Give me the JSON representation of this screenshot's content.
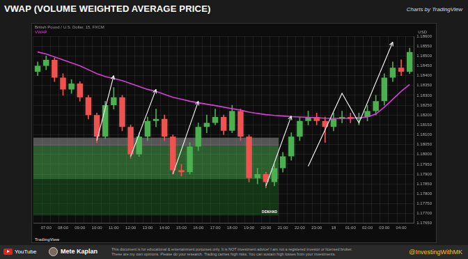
{
  "page": {
    "title": "VWAP (VOLUME WEIGHTED AVERAGE PRICE)",
    "credit": "Charts by TradingView",
    "watermark": "TradingView",
    "footer": {
      "youtube": "YouTube",
      "author": "Mete Kaplan",
      "disclaimer": [
        "This document is for educational & entertainment purposes only. It is NOT investment advice! I am not a registered investor or licensed broker.",
        "These are my own opinions. Please do your research. Trading carries high risks. You can sustain high losses from your investments."
      ],
      "handle": "@InvestingWithMK"
    }
  },
  "chart_data": {
    "type": "candlestick",
    "y_label": "USD",
    "categories": [
      null,
      "07:00",
      null,
      "08:00",
      null,
      "09:00",
      null,
      "10:00",
      null,
      "11:00",
      null,
      "12:00",
      null,
      "13:00",
      null,
      "14:00",
      null,
      "15:00",
      null,
      "16:00",
      null,
      "17:00",
      null,
      "18:00",
      null,
      "19:00",
      null,
      "20:00",
      null,
      "21:00",
      null,
      "22:00",
      null,
      "23:00",
      null,
      "18",
      null,
      "01:00",
      null,
      "02:00",
      null,
      "03:00",
      null,
      "04:00",
      null
    ],
    "series": [
      {
        "name": "British Pound / U.S. Dollar, 15, FXCM",
        "type": "candlestick",
        "values": [
          [
            1.1842,
            1.1847,
            1.184,
            1.1845
          ],
          [
            1.1845,
            1.185,
            1.1843,
            1.1848
          ],
          [
            1.1848,
            1.1849,
            1.1837,
            1.1839
          ],
          [
            1.1839,
            1.1841,
            1.183,
            1.1833
          ],
          [
            1.1833,
            1.1838,
            1.1831,
            1.1836
          ],
          [
            1.1836,
            1.1837,
            1.1827,
            1.1829
          ],
          [
            1.1829,
            1.183,
            1.1818,
            1.182
          ],
          [
            1.182,
            1.1821,
            1.1806,
            1.1809
          ],
          [
            1.1809,
            1.1827,
            1.1808,
            1.1825
          ],
          [
            1.1825,
            1.1834,
            1.1823,
            1.1829
          ],
          [
            1.1829,
            1.183,
            1.1812,
            1.1814
          ],
          [
            1.1814,
            1.1815,
            1.1798,
            1.18
          ],
          [
            1.18,
            1.1811,
            1.1799,
            1.1809
          ],
          [
            1.1809,
            1.1819,
            1.1807,
            1.1817
          ],
          [
            1.1817,
            1.1823,
            1.1814,
            1.1818
          ],
          [
            1.1818,
            1.182,
            1.1807,
            1.1809
          ],
          [
            1.1809,
            1.181,
            1.179,
            1.1792
          ],
          [
            1.1792,
            1.1795,
            1.1789,
            1.1791
          ],
          [
            1.1791,
            1.1806,
            1.179,
            1.1804
          ],
          [
            1.1804,
            1.1816,
            1.1802,
            1.1814
          ],
          [
            1.1814,
            1.182,
            1.1811,
            1.1816
          ],
          [
            1.1816,
            1.1823,
            1.1815,
            1.1819
          ],
          [
            1.1819,
            1.182,
            1.181,
            1.1812
          ],
          [
            1.1812,
            1.1825,
            1.1811,
            1.1822
          ],
          [
            1.1822,
            1.1823,
            1.1807,
            1.1809
          ],
          [
            1.1809,
            1.181,
            1.1786,
            1.1788
          ],
          [
            1.1788,
            1.1793,
            1.1785,
            1.179
          ],
          [
            1.179,
            1.1791,
            1.1783,
            1.1786
          ],
          [
            1.1786,
            1.1795,
            1.1784,
            1.1793
          ],
          [
            1.1793,
            1.1801,
            1.1791,
            1.1799
          ],
          [
            1.1799,
            1.1811,
            1.1797,
            1.1809
          ],
          [
            1.1809,
            1.1819,
            1.1807,
            1.1817
          ],
          [
            1.1817,
            1.1822,
            1.1815,
            1.1819
          ],
          [
            1.1819,
            1.1821,
            1.1815,
            1.1817
          ],
          [
            1.1817,
            1.1819,
            1.1806,
            1.1814
          ],
          [
            1.1814,
            1.1821,
            1.1812,
            1.1818
          ],
          [
            1.1818,
            1.1822,
            1.1816,
            1.1819
          ],
          [
            1.1819,
            1.1821,
            1.1816,
            1.1818
          ],
          [
            1.1818,
            1.1821,
            1.1815,
            1.1819
          ],
          [
            1.1819,
            1.1825,
            1.1817,
            1.1822
          ],
          [
            1.1822,
            1.183,
            1.182,
            1.1827
          ],
          [
            1.1827,
            1.1841,
            1.1825,
            1.1839
          ],
          [
            1.1839,
            1.1847,
            1.1837,
            1.1844
          ],
          [
            1.1844,
            1.1848,
            1.184,
            1.1842
          ],
          [
            1.1842,
            1.1854,
            1.1841,
            1.1852
          ]
        ]
      },
      {
        "name": "VWAP",
        "type": "line",
        "color": "#d63fd6",
        "values": [
          1.1852,
          1.1851,
          1.18495,
          1.1848,
          1.18465,
          1.1845,
          1.1843,
          1.1841,
          1.18395,
          1.18385,
          1.18375,
          1.1836,
          1.18345,
          1.1833,
          1.1832,
          1.18305,
          1.1829,
          1.1828,
          1.1827,
          1.18262,
          1.18255,
          1.18248,
          1.1824,
          1.18232,
          1.18225,
          1.18215,
          1.18208,
          1.18202,
          1.18198,
          1.18195,
          1.18192,
          1.1819,
          1.18188,
          1.18186,
          1.18184,
          1.18183,
          1.18183,
          1.18184,
          1.18186,
          1.1819,
          1.18205,
          1.1824,
          1.1828,
          1.1832,
          1.18355
        ]
      }
    ],
    "ylim": [
      1.1765,
      1.186
    ],
    "yticks": [
      {
        "value": 1.1765,
        "label": "1.17650"
      },
      {
        "value": 1.177,
        "label": "1.17700"
      },
      {
        "value": 1.1775,
        "label": "1.17750"
      },
      {
        "value": 1.178,
        "label": "1.17800"
      },
      {
        "value": 1.1785,
        "label": "1.17850"
      },
      {
        "value": 1.179,
        "label": "1.17900"
      },
      {
        "value": 1.1795,
        "label": "1.17950"
      },
      {
        "value": 1.18,
        "label": "1.18000"
      },
      {
        "value": 1.1805,
        "label": "1.18050"
      },
      {
        "value": 1.181,
        "label": "1.18100"
      },
      {
        "value": 1.1815,
        "label": "1.18150"
      },
      {
        "value": 1.182,
        "label": "1.18200"
      },
      {
        "value": 1.1825,
        "label": "1.18250"
      },
      {
        "value": 1.183,
        "label": "1.18300"
      },
      {
        "value": 1.1835,
        "label": "1.18350"
      },
      {
        "value": 1.184,
        "label": "1.18400"
      },
      {
        "value": 1.1845,
        "label": "1.18450"
      },
      {
        "value": 1.185,
        "label": "1.18500"
      },
      {
        "value": 1.1855,
        "label": "1.18550"
      },
      {
        "value": 1.186,
        "label": "1.18600"
      }
    ],
    "grid": true,
    "zones": [
      {
        "from": 1.18085,
        "to": 1.18041,
        "color": "#9e9e9e"
      },
      {
        "from": 1.18041,
        "to": 1.17874,
        "color": "#4caf50"
      },
      {
        "from": 1.17874,
        "to": 1.1769,
        "color": "#1b5e20"
      }
    ],
    "zone_end": 28,
    "zone_label": "DEMAND",
    "arrows": [
      [
        [
          7,
          1.1807
        ],
        [
          9,
          1.184
        ]
      ],
      [
        [
          11,
          1.1799
        ],
        [
          14,
          1.1833
        ]
      ],
      [
        [
          16,
          1.179
        ],
        [
          19,
          1.1827
        ]
      ],
      [
        [
          27,
          1.1784
        ],
        [
          30,
          1.18195
        ]
      ],
      [
        [
          32,
          1.1794
        ],
        [
          36,
          1.1831
        ],
        [
          38,
          1.1816
        ],
        [
          42,
          1.1857
        ]
      ]
    ]
  }
}
